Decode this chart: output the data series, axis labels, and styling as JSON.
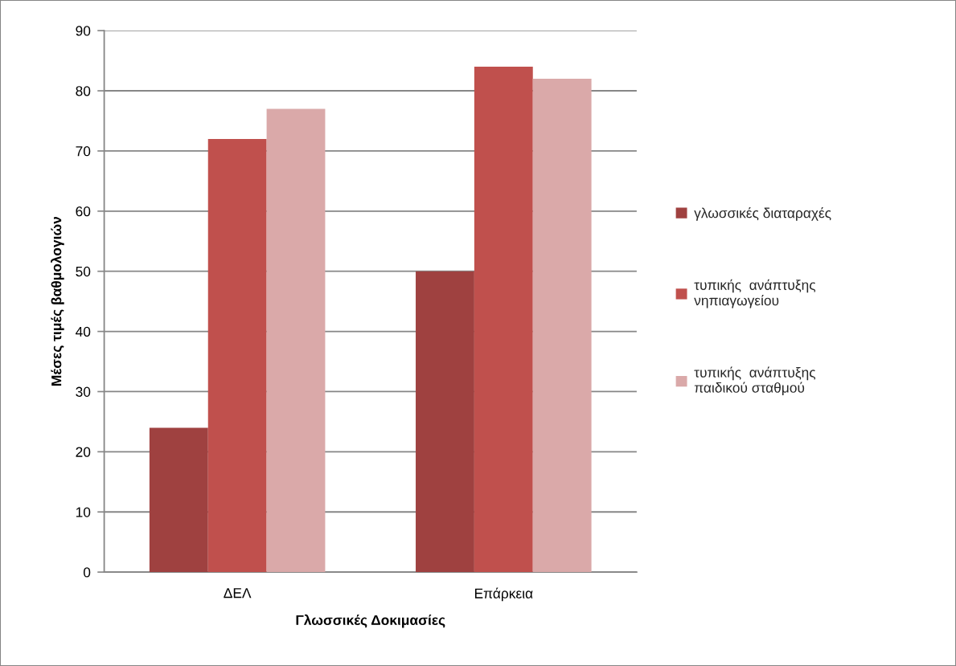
{
  "chart_data": {
    "type": "bar",
    "xlabel": "Γλωσσικές Δοκιμασίες",
    "ylabel": "Μέσες τιμές βαθμολογιών",
    "categories": [
      "ΔΕΛ",
      "Επάρκεια"
    ],
    "series": [
      {
        "name": "γλωσσικές διαταραχές",
        "color": "#9f4140",
        "values": [
          24,
          50
        ]
      },
      {
        "name": "τυπικής  ανάπτυξης\nνηπιαγωγείου",
        "color": "#c0504d",
        "values": [
          72,
          84
        ]
      },
      {
        "name": "τυπικής  ανάπτυξης\nπαιδικού σταθμού",
        "color": "#daa9a9",
        "values": [
          77,
          82
        ]
      }
    ],
    "ylim": [
      0,
      90
    ],
    "yticks": [
      0,
      10,
      20,
      30,
      40,
      50,
      60,
      70,
      80,
      90
    ],
    "grid": "y",
    "legend": "right"
  }
}
